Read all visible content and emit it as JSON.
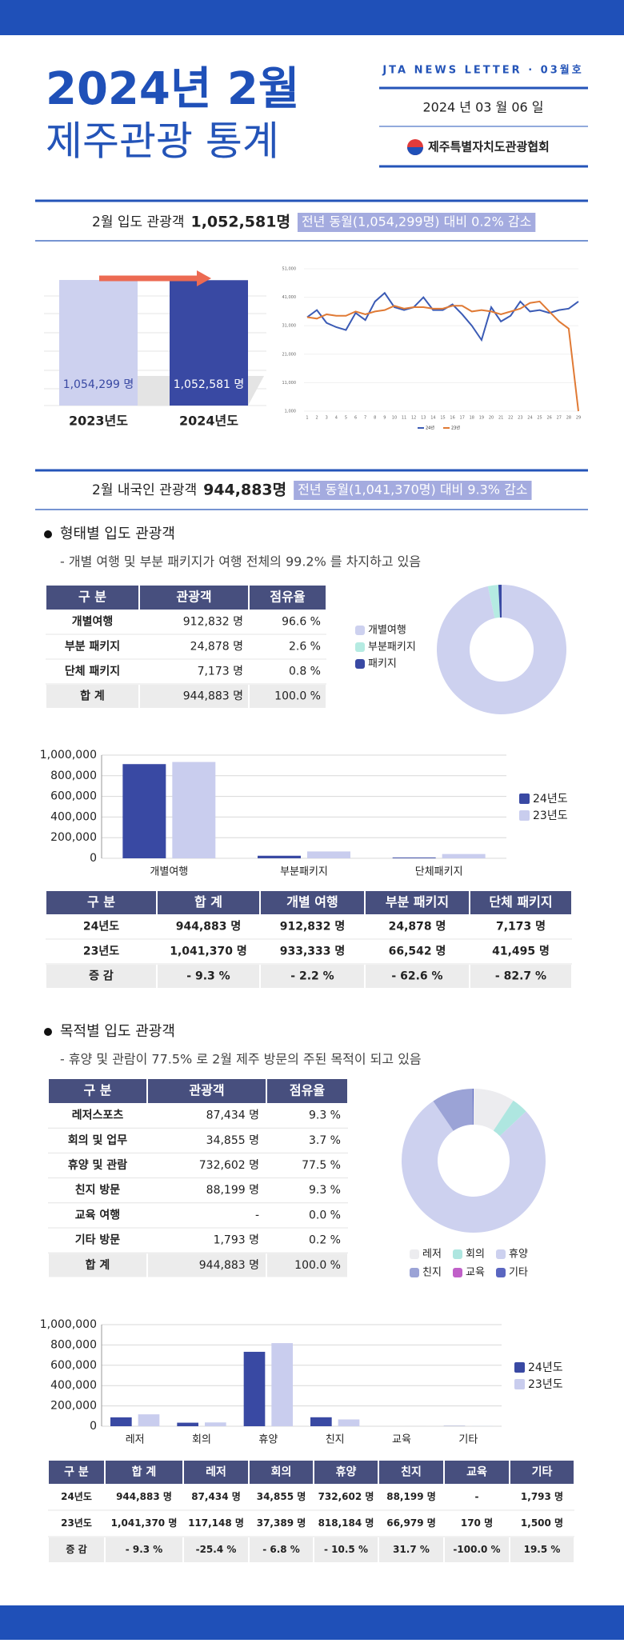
{
  "header": {
    "title_line1": "2024년 2월",
    "title_line2": "제주관광 통계",
    "newsletter": "JTA NEWS LETTER · 03월호",
    "date": "2024 년  03 월  06 일",
    "publisher": "제주특별자치도관광협회"
  },
  "visitors": {
    "label": "2월 입도 관광객",
    "count": "1,052,581명",
    "comparison": "전년 동월(1,054,299명) 대비 0.2% 감소",
    "bar_chart": {
      "type": "bar",
      "categories": [
        "2023년도",
        "2024년도"
      ],
      "values": [
        1054299,
        1052581
      ],
      "value_labels": [
        "1,054,299 명",
        "1,052,581 명"
      ],
      "colors": [
        "#cdd1ef",
        "#3949a3"
      ],
      "label_colors": [
        "#3949a3",
        "#ffffff"
      ]
    },
    "line_chart": {
      "type": "line",
      "x": [
        1,
        2,
        3,
        4,
        5,
        6,
        7,
        8,
        9,
        10,
        11,
        12,
        13,
        14,
        15,
        16,
        17,
        18,
        19,
        20,
        21,
        22,
        23,
        24,
        25,
        26,
        27,
        28,
        29
      ],
      "ylim": [
        1000,
        51000
      ],
      "yticks": [
        {
          "value": 1000,
          "label": "1,000"
        },
        {
          "value": 11000,
          "label": "11,000"
        },
        {
          "value": 21000,
          "label": "21,000"
        },
        {
          "value": 31000,
          "label": "31,000"
        },
        {
          "value": 41000,
          "label": "41,000"
        },
        {
          "value": 51000,
          "label": "51,000"
        }
      ],
      "series": [
        {
          "name": "24년",
          "color": "#3b5bb5",
          "values": [
            34000,
            36500,
            32000,
            30500,
            29500,
            35500,
            33000,
            39500,
            42500,
            37500,
            36500,
            37500,
            41000,
            36500,
            36500,
            38500,
            35000,
            31000,
            26000,
            37500,
            32500,
            34500,
            39500,
            36000,
            36500,
            35500,
            36500,
            37000,
            39500
          ]
        },
        {
          "name": "23년",
          "color": "#e07a35",
          "values": [
            34000,
            33500,
            35000,
            34500,
            34500,
            36000,
            35000,
            36000,
            36500,
            38000,
            37000,
            37500,
            37500,
            37000,
            37000,
            38000,
            38000,
            36000,
            36500,
            36000,
            35000,
            36000,
            37000,
            39000,
            39500,
            36000,
            32500,
            30000,
            1000
          ]
        }
      ]
    }
  },
  "domestic": {
    "label": "2월 내국인 관광객",
    "count": "944,883명",
    "comparison": "전년 동월(1,041,370명) 대비 9.3% 감소"
  },
  "by_type": {
    "title": "형태별 입도 관광객",
    "note": "- 개별 여행 및 부분 패키지가 여행 전체의 99.2% 를 차지하고 있음",
    "table": {
      "header": [
        "구 분",
        "관광객",
        "점유율"
      ],
      "rows": [
        [
          "개별여행",
          "912,832 명",
          "96.6 %"
        ],
        [
          "부분 패키지",
          "24,878 명",
          "2.6 %"
        ],
        [
          "단체 패키지",
          "7,173 명",
          "0.8 %"
        ],
        [
          "합 계",
          "944,883 명",
          "100.0 %"
        ]
      ]
    },
    "donut": {
      "type": "pie",
      "categories": [
        "개별여행",
        "부분패키지",
        "패키지"
      ],
      "values": [
        96.6,
        2.6,
        0.8
      ],
      "colors": [
        "#cdd1ef",
        "#b5ebe2",
        "#3949a3"
      ]
    },
    "bar_chart": {
      "type": "bar",
      "categories": [
        "개별여행",
        "부분패키지",
        "단체패키지"
      ],
      "ylim": [
        0,
        1000000
      ],
      "yticks": [
        0,
        {
          "value": 200000,
          "label": "200,000"
        },
        {
          "value": 400000,
          "label": "400,000"
        },
        {
          "value": 600000,
          "label": "600,000"
        },
        {
          "value": 800000,
          "label": "800,000"
        },
        {
          "value": 1000000,
          "label": "1,000,000"
        }
      ],
      "series": [
        {
          "name": "24년도",
          "color": "#3949a3",
          "values": [
            912832,
            24878,
            7173
          ]
        },
        {
          "name": "23년도",
          "color": "#c9cdee",
          "values": [
            933333,
            66542,
            41495
          ]
        }
      ]
    },
    "compare_table": {
      "header": [
        "구 분",
        "합 계",
        "개별 여행",
        "부분 패키지",
        "단체 패키지"
      ],
      "rows": [
        [
          "24년도",
          "944,883 명",
          "912,832 명",
          "24,878 명",
          "7,173 명"
        ],
        [
          "23년도",
          "1,041,370 명",
          "933,333 명",
          "66,542 명",
          "41,495 명"
        ],
        [
          "증 감",
          "- 9.3 %",
          "- 2.2 %",
          "- 62.6 %",
          "- 82.7 %"
        ]
      ]
    }
  },
  "by_purpose": {
    "title": "목적별 입도 관광객",
    "note": "- 휴양 및 관람이 77.5% 로 2월 제주 방문의 주된 목적이 되고 있음",
    "table": {
      "header": [
        "구 분",
        "관광객",
        "점유율"
      ],
      "rows": [
        [
          "레저스포츠",
          "87,434 명",
          "9.3 %"
        ],
        [
          "회의 및 업무",
          "34,855 명",
          "3.7 %"
        ],
        [
          "휴양 및 관람",
          "732,602 명",
          "77.5 %"
        ],
        [
          "친지 방문",
          "88,199 명",
          "9.3 %"
        ],
        [
          "교육 여행",
          "-",
          "0.0 %"
        ],
        [
          "기타 방문",
          "1,793 명",
          "0.2 %"
        ],
        [
          "합 계",
          "944,883 명",
          "100.0 %"
        ]
      ]
    },
    "donut": {
      "type": "pie",
      "categories": [
        "레저",
        "회의",
        "휴양",
        "친지",
        "교육",
        "기타"
      ],
      "values": [
        9.3,
        3.7,
        77.5,
        9.3,
        0.0,
        0.2
      ],
      "colors": [
        "#ececef",
        "#aee6e0",
        "#cdd1ef",
        "#9ba3d6",
        "#c060c8",
        "#5a66c0"
      ]
    },
    "bar_chart": {
      "type": "bar",
      "categories": [
        "레저",
        "회의",
        "휴양",
        "친지",
        "교육",
        "기타"
      ],
      "ylim": [
        0,
        1000000
      ],
      "yticks": [
        0,
        {
          "value": 200000,
          "label": "200,000"
        },
        {
          "value": 400000,
          "label": "400,000"
        },
        {
          "value": 600000,
          "label": "600,000"
        },
        {
          "value": 800000,
          "label": "800,000"
        },
        {
          "value": 1000000,
          "label": "1,000,000"
        }
      ],
      "series": [
        {
          "name": "24년도",
          "color": "#3949a3",
          "values": [
            87434,
            34855,
            732602,
            88199,
            0,
            1793
          ]
        },
        {
          "name": "23년도",
          "color": "#c9cdee",
          "values": [
            117148,
            37389,
            818184,
            66979,
            170,
            1500
          ]
        }
      ]
    },
    "compare_table": {
      "header": [
        "구 분",
        "합 계",
        "레저",
        "회의",
        "휴양",
        "친지",
        "교육",
        "기타"
      ],
      "rows": [
        [
          "24년도",
          "944,883 명",
          "87,434 명",
          "34,855 명",
          "732,602 명",
          "88,199 명",
          "-",
          "1,793 명"
        ],
        [
          "23년도",
          "1,041,370 명",
          "117,148 명",
          "37,389 명",
          "818,184 명",
          "66,979 명",
          "170 명",
          "1,500 명"
        ],
        [
          "증 감",
          "- 9.3 %",
          "-25.4 %",
          "- 6.8 %",
          "- 10.5 %",
          "31.7 %",
          "-100.0 %",
          "19.5 %"
        ]
      ]
    }
  }
}
